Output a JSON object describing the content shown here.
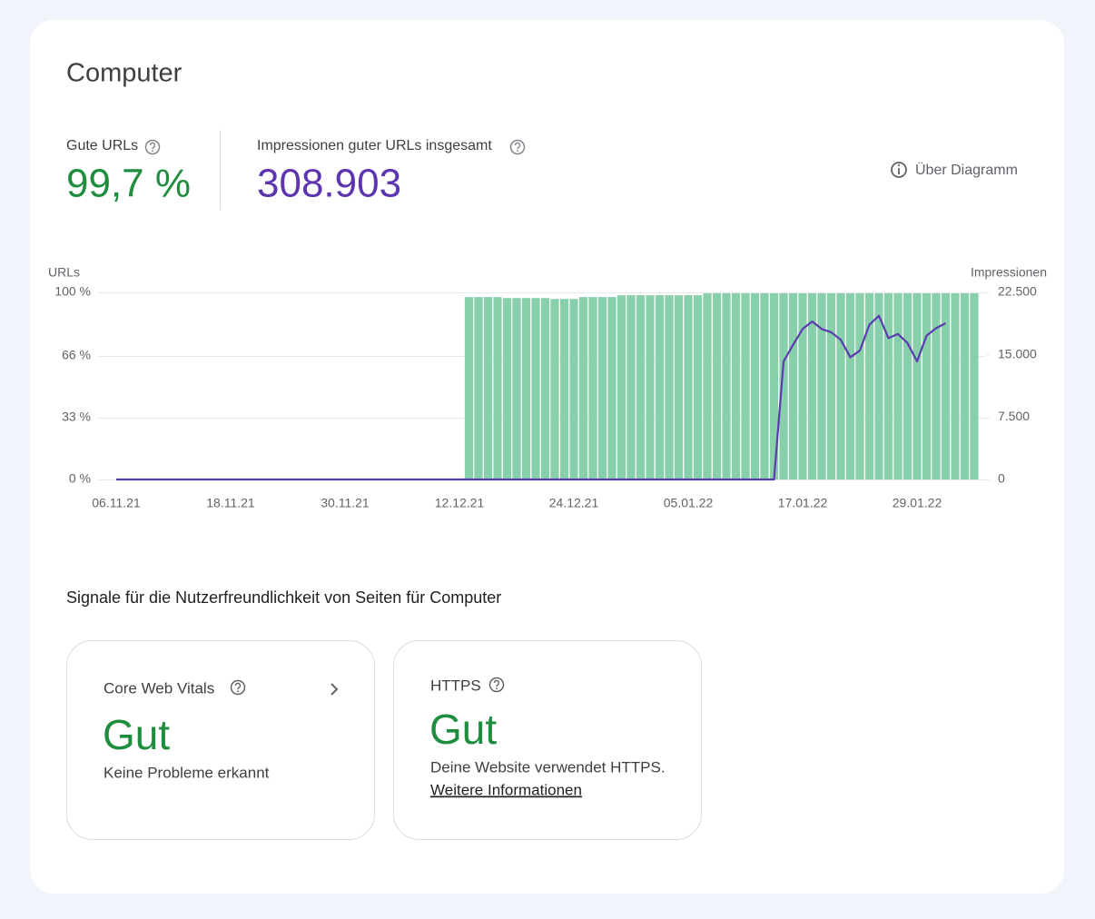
{
  "header": {
    "title": "Computer"
  },
  "metrics": [
    {
      "label": "Gute URLs",
      "value": "99,7 %"
    },
    {
      "label": "Impressionen guter URLs insgesamt",
      "value": "308.903"
    }
  ],
  "about_link": "Über Diagramm",
  "chart_data": {
    "type": "bar",
    "ylabel": "URLs",
    "y2label": "Impressionen",
    "categories": [
      "06.11.21",
      null,
      null,
      null,
      null,
      null,
      null,
      null,
      null,
      null,
      null,
      null,
      "18.11.21",
      null,
      null,
      null,
      null,
      null,
      null,
      null,
      null,
      null,
      null,
      null,
      "30.11.21",
      null,
      null,
      null,
      null,
      null,
      null,
      null,
      null,
      null,
      null,
      null,
      "12.12.21",
      null,
      null,
      null,
      null,
      null,
      null,
      null,
      null,
      null,
      null,
      null,
      "24.12.21",
      null,
      null,
      null,
      null,
      null,
      null,
      null,
      null,
      null,
      null,
      null,
      "05.01.22",
      null,
      null,
      null,
      null,
      null,
      null,
      null,
      null,
      null,
      null,
      null,
      "17.01.22",
      null,
      null,
      null,
      null,
      null,
      null,
      null,
      null,
      null,
      null,
      null,
      "29.01.22",
      null,
      null,
      null,
      null,
      null,
      null
    ],
    "series": [
      {
        "type": "bar",
        "color": "#87d0aa",
        "values": [
          null,
          null,
          null,
          null,
          null,
          null,
          null,
          null,
          null,
          null,
          null,
          null,
          null,
          null,
          null,
          null,
          null,
          null,
          null,
          null,
          null,
          null,
          null,
          null,
          null,
          null,
          null,
          null,
          null,
          null,
          null,
          null,
          null,
          null,
          null,
          null,
          null,
          97.5,
          97.5,
          97.5,
          97.5,
          97,
          97,
          97,
          97,
          97,
          96.5,
          96.5,
          96.5,
          97.5,
          97.5,
          97.5,
          97.5,
          98.5,
          98.5,
          98.5,
          98.5,
          98.5,
          98.5,
          98.5,
          98.5,
          98.5,
          99.5,
          99.5,
          99.5,
          99.5,
          99.5,
          99.5,
          99.5,
          99.5,
          99.5,
          99.5,
          99.5,
          99.5,
          99.5,
          99.5,
          99.5,
          99.5,
          99.5,
          99.5,
          99.5,
          99.5,
          99.5,
          99.5,
          99.5,
          99.5,
          99.5,
          99.5,
          99.5,
          99.5,
          99.5
        ]
      },
      {
        "type": "line",
        "axis": "y2",
        "color": "#5b3cb0",
        "values": [
          0,
          0,
          0,
          0,
          0,
          0,
          0,
          0,
          0,
          0,
          0,
          0,
          0,
          0,
          0,
          0,
          0,
          0,
          0,
          0,
          0,
          0,
          0,
          0,
          0,
          0,
          0,
          0,
          0,
          0,
          0,
          0,
          0,
          0,
          0,
          0,
          0,
          0,
          0,
          0,
          0,
          0,
          0,
          0,
          0,
          0,
          0,
          0,
          0,
          0,
          0,
          0,
          0,
          0,
          0,
          0,
          0,
          0,
          0,
          0,
          0,
          0,
          0,
          0,
          0,
          0,
          0,
          0,
          0,
          0,
          14200,
          16200,
          18100,
          19000,
          18100,
          17700,
          16800,
          14700,
          15500,
          18600,
          19700,
          17000,
          17500,
          16400,
          14200,
          17300,
          18200,
          18800,
          null,
          null,
          null
        ]
      }
    ],
    "ylim": [
      0,
      100
    ],
    "yticks": [
      {
        "value": 0,
        "label": "0 %"
      },
      {
        "value": 33,
        "label": "33 %"
      },
      {
        "value": 66,
        "label": "66 %"
      },
      {
        "value": 100,
        "label": "100 %"
      }
    ],
    "y2lim": [
      0,
      22500
    ],
    "y2ticks": [
      0,
      {
        "value": 7500,
        "label": "7.500"
      },
      {
        "value": 15000,
        "label": "15.000"
      },
      {
        "value": 22500,
        "label": "22.500"
      }
    ],
    "grid": true
  },
  "signals": {
    "title": "Signale für die Nutzerfreundlichkeit von Seiten für Computer",
    "cards": [
      {
        "title": "Core Web Vitals",
        "status": "Gut",
        "description": "Keine Probleme erkannt"
      },
      {
        "title": "HTTPS",
        "status": "Gut",
        "description": "Deine Website verwendet HTTPS.",
        "link": "Weitere Informationen"
      }
    ]
  }
}
